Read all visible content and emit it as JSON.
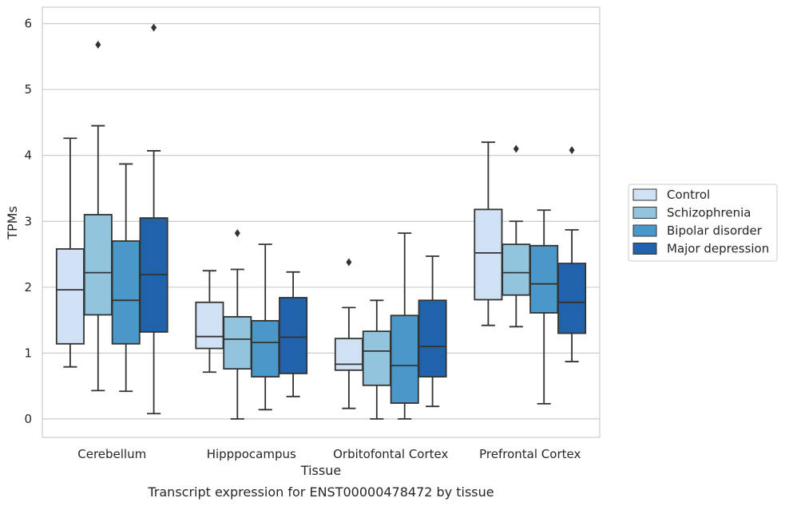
{
  "caption": "Transcript expression for ENST00000478472 by tissue",
  "chart_data": {
    "type": "box",
    "xlabel": "Tissue",
    "ylabel": "TPMs",
    "ylim": [
      -0.28,
      6.25
    ],
    "yticks": [
      0,
      1,
      2,
      3,
      4,
      5,
      6
    ],
    "grid": "horizontal",
    "legend_position": "right",
    "categories": [
      "Cerebellum",
      "Hipppocampus",
      "Orbitofontal Cortex",
      "Prefrontal Cortex"
    ],
    "series": [
      {
        "name": "Control",
        "color": "#cfe1f2",
        "boxes": [
          {
            "whisker_low": 0.79,
            "q1": 1.14,
            "median": 1.96,
            "q3": 2.58,
            "whisker_high": 4.26,
            "outliers": []
          },
          {
            "whisker_low": 0.71,
            "q1": 1.07,
            "median": 1.25,
            "q3": 1.77,
            "whisker_high": 2.25,
            "outliers": []
          },
          {
            "whisker_low": 0.16,
            "q1": 0.74,
            "median": 0.83,
            "q3": 1.22,
            "whisker_high": 1.69,
            "outliers": [
              2.38
            ]
          },
          {
            "whisker_low": 1.42,
            "q1": 1.81,
            "median": 2.52,
            "q3": 3.18,
            "whisker_high": 4.2,
            "outliers": []
          }
        ]
      },
      {
        "name": "Schizophrenia",
        "color": "#93c4de",
        "boxes": [
          {
            "whisker_low": 0.43,
            "q1": 1.58,
            "median": 2.22,
            "q3": 3.1,
            "whisker_high": 4.45,
            "outliers": [
              5.68
            ]
          },
          {
            "whisker_low": 0.0,
            "q1": 0.76,
            "median": 1.21,
            "q3": 1.55,
            "whisker_high": 2.27,
            "outliers": [
              2.82
            ]
          },
          {
            "whisker_low": 0.0,
            "q1": 0.51,
            "median": 1.03,
            "q3": 1.33,
            "whisker_high": 1.8,
            "outliers": []
          },
          {
            "whisker_low": 1.4,
            "q1": 1.88,
            "median": 2.22,
            "q3": 2.65,
            "whisker_high": 3.0,
            "outliers": [
              4.1
            ]
          }
        ]
      },
      {
        "name": "Bipolar disorder",
        "color": "#4a98c9",
        "boxes": [
          {
            "whisker_low": 0.42,
            "q1": 1.14,
            "median": 1.8,
            "q3": 2.7,
            "whisker_high": 3.87,
            "outliers": []
          },
          {
            "whisker_low": 0.14,
            "q1": 0.64,
            "median": 1.16,
            "q3": 1.49,
            "whisker_high": 2.65,
            "outliers": []
          },
          {
            "whisker_low": 0.0,
            "q1": 0.24,
            "median": 0.81,
            "q3": 1.57,
            "whisker_high": 2.82,
            "outliers": []
          },
          {
            "whisker_low": 0.23,
            "q1": 1.61,
            "median": 2.05,
            "q3": 2.63,
            "whisker_high": 3.17,
            "outliers": []
          }
        ]
      },
      {
        "name": "Major depression",
        "color": "#2163aa",
        "boxes": [
          {
            "whisker_low": 0.08,
            "q1": 1.32,
            "median": 2.19,
            "q3": 3.05,
            "whisker_high": 4.07,
            "outliers": [
              5.94
            ]
          },
          {
            "whisker_low": 0.34,
            "q1": 0.69,
            "median": 1.24,
            "q3": 1.84,
            "whisker_high": 2.23,
            "outliers": []
          },
          {
            "whisker_low": 0.19,
            "q1": 0.64,
            "median": 1.1,
            "q3": 1.8,
            "whisker_high": 2.47,
            "outliers": []
          },
          {
            "whisker_low": 0.87,
            "q1": 1.3,
            "median": 1.77,
            "q3": 2.36,
            "whisker_high": 2.87,
            "outliers": [
              4.08
            ]
          }
        ]
      }
    ]
  }
}
